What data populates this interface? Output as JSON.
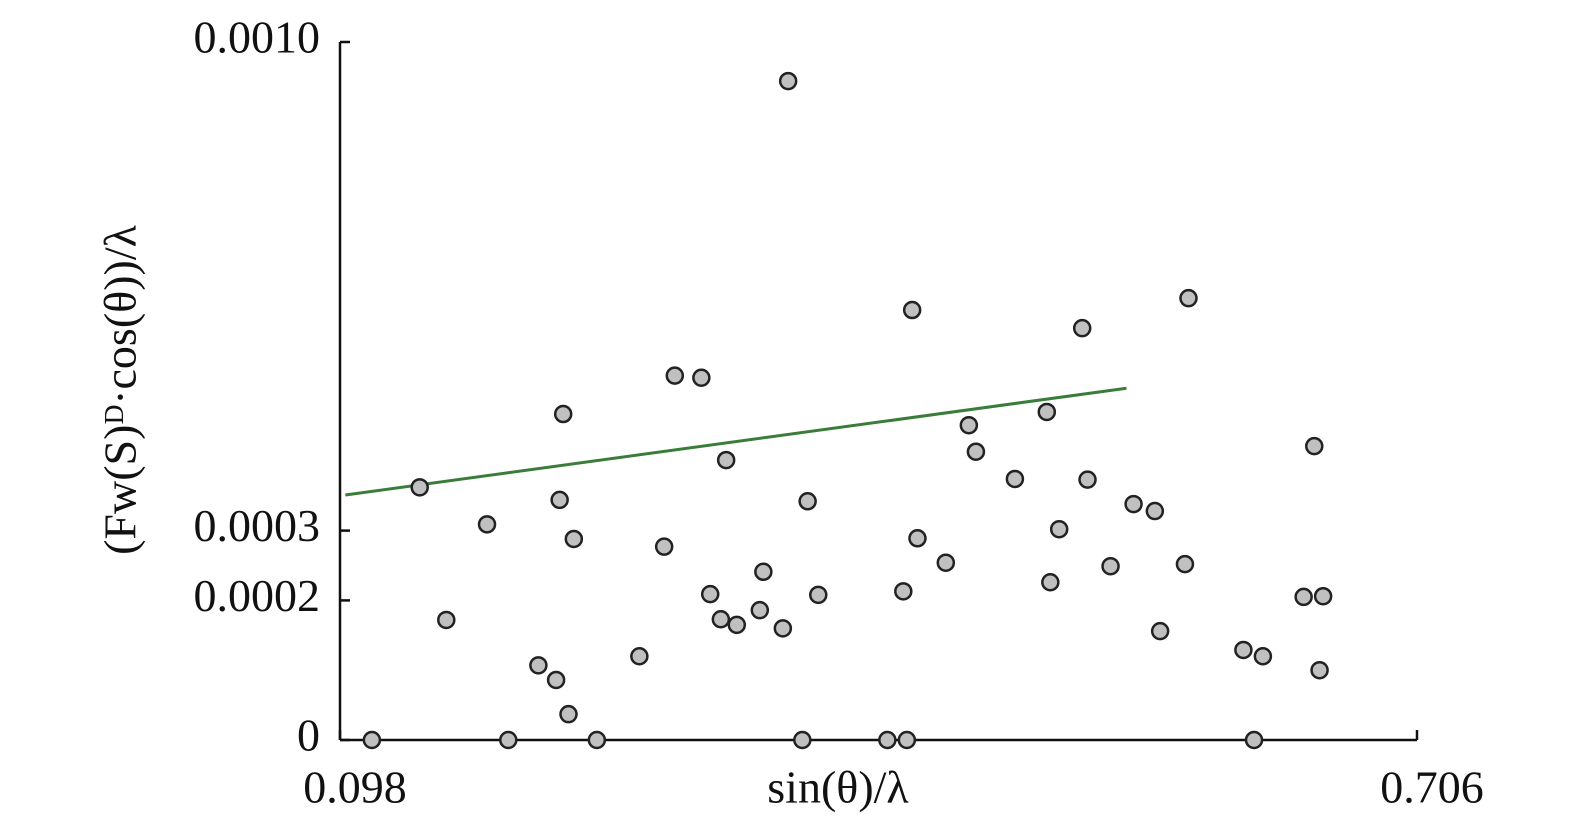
{
  "chart_data": {
    "type": "scatter",
    "xlabel": "sin(θ)/λ",
    "ylabel": "(Fw(S)ᴰ·cos(θ))/λ",
    "xlim": [
      0.098,
      0.706
    ],
    "xticks": [
      0.098,
      0.706
    ],
    "ylim": [
      0,
      0.001
    ],
    "yticks": [
      0,
      0.0003,
      0.0002,
      {
        "value": 0.001,
        "label": "0.0010"
      }
    ],
    "series": [
      {
        "color": "#c0c0c0",
        "x": [
          0.116,
          0.143,
          0.158,
          0.181,
          0.193,
          0.21,
          0.22,
          0.222,
          0.224,
          0.227,
          0.23,
          0.243,
          0.267,
          0.281,
          0.287,
          0.302,
          0.307,
          0.313,
          0.316,
          0.322,
          0.335,
          0.337,
          0.348,
          0.351,
          0.359,
          0.362,
          0.368,
          0.407,
          0.416,
          0.418,
          0.421,
          0.424,
          0.44,
          0.453,
          0.457,
          0.479,
          0.497,
          0.499,
          0.504,
          0.517,
          0.52,
          0.533,
          0.546,
          0.558,
          0.561,
          0.575,
          0.577,
          0.608,
          0.614,
          0.619,
          0.642,
          0.648,
          0.651,
          0.653
        ],
        "values": [
          0,
          0.000362,
          0.000172,
          0.000309,
          0,
          0.000107,
          8.6e-05,
          0.000344,
          0.000467,
          3.7e-05,
          0.000288,
          0,
          0.00012,
          0.000277,
          0.000522,
          0.000519,
          0.000209,
          0.000173,
          0.000401,
          0.000165,
          0.000186,
          0.000241,
          0.00016,
          0.000944,
          0,
          0.000342,
          0.000208,
          0,
          0.000213,
          0,
          0.000616,
          0.000289,
          0.000254,
          0.000451,
          0.000413,
          0.000374,
          0.00047,
          0.000226,
          0.000302,
          0.00059,
          0.000373,
          0.000249,
          0.000338,
          0.000328,
          0.000156,
          0.000252,
          0.000633,
          0.000129,
          0,
          0.00012,
          0.000205,
          0.000421,
          0.0001,
          0.000206
        ]
      }
    ],
    "trendline": {
      "color": "#3a7d3a",
      "x": [
        0.101,
        0.542
      ],
      "values": [
        0.000351,
        0.000504
      ]
    }
  }
}
